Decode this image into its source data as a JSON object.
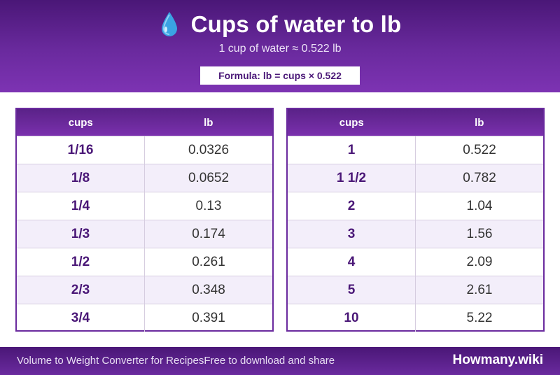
{
  "header": {
    "icon": "water-drop-icon",
    "title": "Cups of water to lb",
    "subtitle": "1 cup of water ≈ 0.522 lb",
    "formula": "Formula: lb = cups × 0.522"
  },
  "tables": [
    {
      "col1": "cups",
      "col2": "lb",
      "rows": [
        {
          "cups": "1/16",
          "lb": "0.0326"
        },
        {
          "cups": "1/8",
          "lb": "0.0652"
        },
        {
          "cups": "1/4",
          "lb": "0.13"
        },
        {
          "cups": "1/3",
          "lb": "0.174"
        },
        {
          "cups": "1/2",
          "lb": "0.261"
        },
        {
          "cups": "2/3",
          "lb": "0.348"
        },
        {
          "cups": "3/4",
          "lb": "0.391"
        }
      ]
    },
    {
      "col1": "cups",
      "col2": "lb",
      "rows": [
        {
          "cups": "1",
          "lb": "0.522"
        },
        {
          "cups": "1 1/2",
          "lb": "0.782"
        },
        {
          "cups": "2",
          "lb": "1.04"
        },
        {
          "cups": "3",
          "lb": "1.56"
        },
        {
          "cups": "4",
          "lb": "2.09"
        },
        {
          "cups": "5",
          "lb": "2.61"
        },
        {
          "cups": "10",
          "lb": "5.22"
        }
      ]
    }
  ],
  "footer": {
    "left": "Volume to Weight Converter for RecipesFree to download and share",
    "brand": "Howmany.wiki"
  },
  "colors": {
    "primary": "#6a2a9e",
    "dark": "#4a1777",
    "row_alt": "#f3eefa",
    "drop": "#3aa3e3"
  }
}
